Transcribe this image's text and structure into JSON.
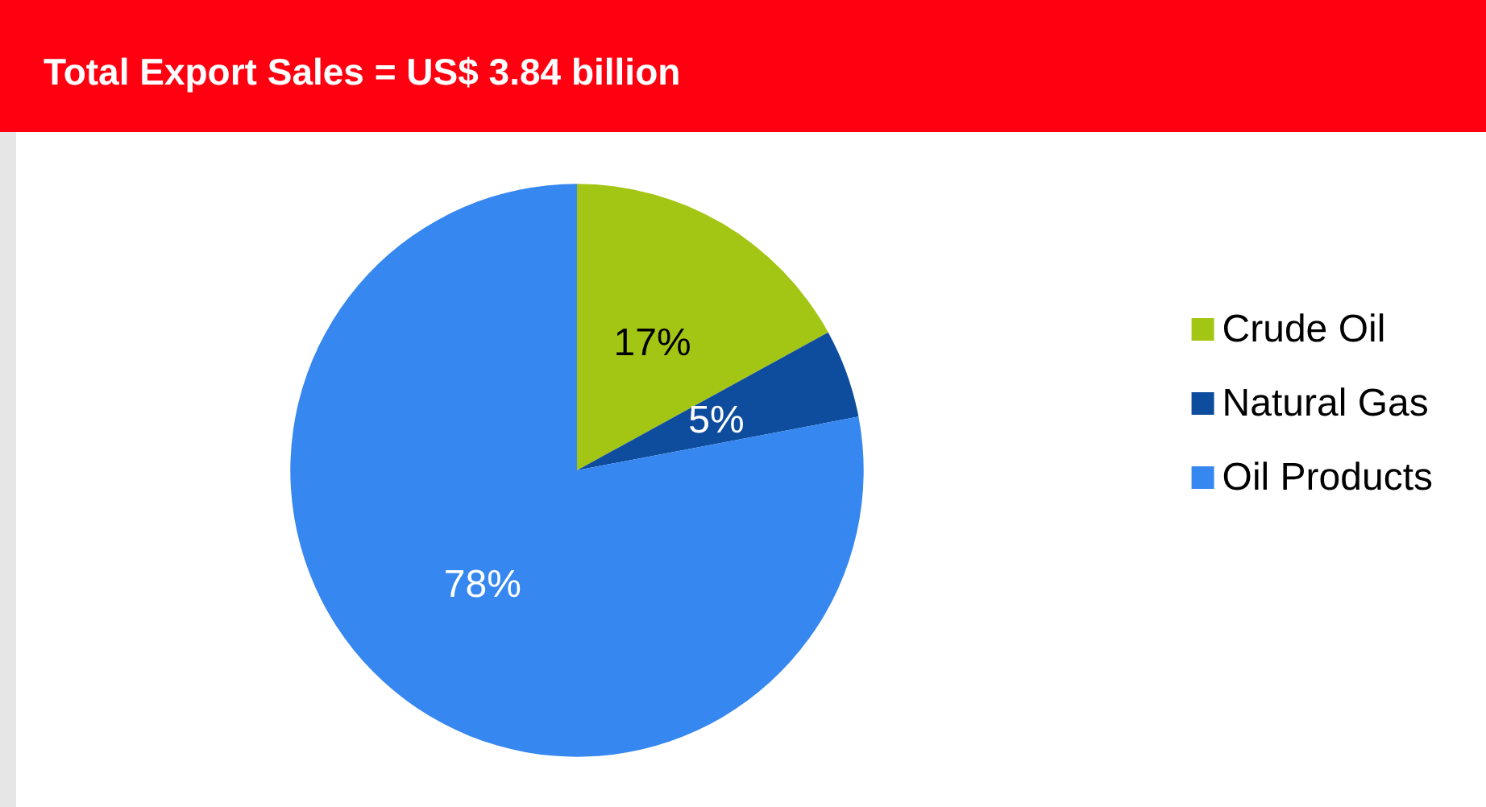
{
  "chart_data": {
    "type": "pie",
    "title": "Total Export Sales = US$ 3.84 billion",
    "categories": [
      "Crude Oil",
      "Natural Gas",
      "Oil Products"
    ],
    "values": [
      17,
      5,
      78
    ],
    "colors": [
      "#a3c514",
      "#0e4c9e",
      "#3787f0"
    ],
    "value_labels": [
      "17%",
      "5%",
      "78%"
    ],
    "legend": "right"
  }
}
